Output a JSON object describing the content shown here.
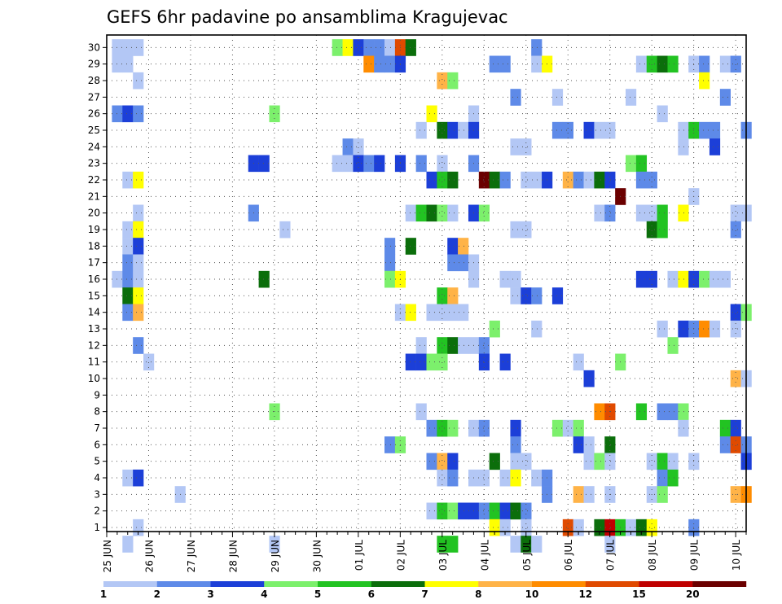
{
  "chart_data": {
    "type": "heatmap",
    "title": "GEFS 6hr padavine po ansamblima Kragujevac",
    "xlabel": "",
    "ylabel": "",
    "x_tick_labels": [
      "25 JUN",
      "26 JUN",
      "27 JUN",
      "28 JUN",
      "29 JUN",
      "30 JUN",
      "01 JUL",
      "02 JUL",
      "03 JUL",
      "04 JUL",
      "05 JUL",
      "06 JUL",
      "07 JUL",
      "08 JUL",
      "09 JUL",
      "10 JUL"
    ],
    "y_tick_labels": [
      "1",
      "2",
      "3",
      "4",
      "5",
      "6",
      "7",
      "8",
      "9",
      "10",
      "11",
      "12",
      "13",
      "14",
      "15",
      "16",
      "17",
      "18",
      "19",
      "20",
      "21",
      "22",
      "23",
      "24",
      "25",
      "26",
      "27",
      "28",
      "29",
      "30"
    ],
    "x_steps_6h": 61,
    "y_members": 30,
    "grid": true,
    "levels": [
      1,
      2,
      3,
      4,
      5,
      6,
      7,
      8,
      10,
      12,
      15,
      20
    ],
    "level_labels": [
      "1",
      "2",
      "3",
      "4",
      "5",
      "6",
      "7",
      "8",
      "10",
      "12",
      "15",
      "20"
    ],
    "palette": [
      "#b3c7f5",
      "#5e8ae8",
      "#1c3fd8",
      "#7cf06c",
      "#22c322",
      "#0b6e0b",
      "#ffff00",
      "#ffb347",
      "#ff8c00",
      "#e04a00",
      "#c00000",
      "#6b0000"
    ],
    "cells": [
      [
        0,
        30,
        0
      ],
      [
        1,
        30,
        0
      ],
      [
        2,
        30,
        0
      ],
      [
        21,
        30,
        3
      ],
      [
        22,
        30,
        6
      ],
      [
        23,
        30,
        2
      ],
      [
        24,
        30,
        1
      ],
      [
        25,
        30,
        1
      ],
      [
        26,
        30,
        0
      ],
      [
        27,
        30,
        9
      ],
      [
        28,
        30,
        5
      ],
      [
        40,
        30,
        1
      ],
      [
        0,
        29,
        0
      ],
      [
        1,
        29,
        0
      ],
      [
        24,
        29,
        8
      ],
      [
        25,
        29,
        1
      ],
      [
        26,
        29,
        1
      ],
      [
        27,
        29,
        2
      ],
      [
        36,
        29,
        1
      ],
      [
        37,
        29,
        1
      ],
      [
        40,
        29,
        0
      ],
      [
        41,
        29,
        6
      ],
      [
        50,
        29,
        0
      ],
      [
        51,
        29,
        4
      ],
      [
        52,
        29,
        5
      ],
      [
        53,
        29,
        4
      ],
      [
        55,
        29,
        0
      ],
      [
        56,
        29,
        1
      ],
      [
        58,
        29,
        0
      ],
      [
        59,
        29,
        1
      ],
      [
        2,
        28,
        0
      ],
      [
        31,
        28,
        7
      ],
      [
        32,
        28,
        3
      ],
      [
        56,
        28,
        6
      ],
      [
        38,
        27,
        1
      ],
      [
        42,
        27,
        0
      ],
      [
        49,
        27,
        0
      ],
      [
        58,
        27,
        1
      ],
      [
        0,
        26,
        1
      ],
      [
        1,
        26,
        2
      ],
      [
        2,
        26,
        1
      ],
      [
        15,
        26,
        3
      ],
      [
        30,
        26,
        6
      ],
      [
        34,
        26,
        0
      ],
      [
        52,
        26,
        0
      ],
      [
        29,
        25,
        0
      ],
      [
        31,
        25,
        5
      ],
      [
        32,
        25,
        2
      ],
      [
        33,
        25,
        0
      ],
      [
        34,
        25,
        2
      ],
      [
        42,
        25,
        1
      ],
      [
        43,
        25,
        1
      ],
      [
        45,
        25,
        2
      ],
      [
        46,
        25,
        0
      ],
      [
        47,
        25,
        0
      ],
      [
        54,
        25,
        0
      ],
      [
        55,
        25,
        4
      ],
      [
        56,
        25,
        1
      ],
      [
        57,
        25,
        1
      ],
      [
        60,
        25,
        1
      ],
      [
        22,
        24,
        1
      ],
      [
        23,
        24,
        0
      ],
      [
        38,
        24,
        0
      ],
      [
        39,
        24,
        0
      ],
      [
        54,
        24,
        0
      ],
      [
        57,
        24,
        2
      ],
      [
        13,
        23,
        2
      ],
      [
        14,
        23,
        2
      ],
      [
        21,
        23,
        0
      ],
      [
        22,
        23,
        0
      ],
      [
        23,
        23,
        2
      ],
      [
        24,
        23,
        1
      ],
      [
        25,
        23,
        2
      ],
      [
        27,
        23,
        2
      ],
      [
        29,
        23,
        1
      ],
      [
        31,
        23,
        0
      ],
      [
        34,
        23,
        1
      ],
      [
        49,
        23,
        3
      ],
      [
        50,
        23,
        4
      ],
      [
        1,
        22,
        0
      ],
      [
        2,
        22,
        6
      ],
      [
        30,
        22,
        2
      ],
      [
        31,
        22,
        4
      ],
      [
        32,
        22,
        5
      ],
      [
        35,
        22,
        11
      ],
      [
        36,
        22,
        5
      ],
      [
        37,
        22,
        1
      ],
      [
        39,
        22,
        0
      ],
      [
        40,
        22,
        0
      ],
      [
        41,
        22,
        2
      ],
      [
        43,
        22,
        7
      ],
      [
        44,
        22,
        1
      ],
      [
        45,
        22,
        0
      ],
      [
        46,
        22,
        5
      ],
      [
        47,
        22,
        2
      ],
      [
        50,
        22,
        1
      ],
      [
        51,
        22,
        1
      ],
      [
        48,
        21,
        11
      ],
      [
        55,
        21,
        0
      ],
      [
        2,
        20,
        0
      ],
      [
        13,
        20,
        1
      ],
      [
        28,
        20,
        0
      ],
      [
        29,
        20,
        4
      ],
      [
        30,
        20,
        5
      ],
      [
        31,
        20,
        3
      ],
      [
        32,
        20,
        0
      ],
      [
        34,
        20,
        2
      ],
      [
        35,
        20,
        3
      ],
      [
        46,
        20,
        0
      ],
      [
        47,
        20,
        1
      ],
      [
        50,
        20,
        0
      ],
      [
        51,
        20,
        0
      ],
      [
        52,
        20,
        4
      ],
      [
        54,
        20,
        6
      ],
      [
        59,
        20,
        0
      ],
      [
        60,
        20,
        0
      ],
      [
        1,
        19,
        0
      ],
      [
        2,
        19,
        6
      ],
      [
        16,
        19,
        0
      ],
      [
        38,
        19,
        0
      ],
      [
        39,
        19,
        0
      ],
      [
        51,
        19,
        5
      ],
      [
        52,
        19,
        4
      ],
      [
        59,
        19,
        1
      ],
      [
        1,
        18,
        0
      ],
      [
        2,
        18,
        2
      ],
      [
        26,
        18,
        1
      ],
      [
        28,
        18,
        5
      ],
      [
        32,
        18,
        2
      ],
      [
        33,
        18,
        7
      ],
      [
        1,
        17,
        1
      ],
      [
        2,
        17,
        0
      ],
      [
        26,
        17,
        1
      ],
      [
        32,
        17,
        1
      ],
      [
        33,
        17,
        1
      ],
      [
        34,
        17,
        0
      ],
      [
        0,
        16,
        0
      ],
      [
        1,
        16,
        1
      ],
      [
        2,
        16,
        0
      ],
      [
        14,
        16,
        5
      ],
      [
        26,
        16,
        3
      ],
      [
        27,
        16,
        6
      ],
      [
        34,
        16,
        0
      ],
      [
        37,
        16,
        0
      ],
      [
        38,
        16,
        0
      ],
      [
        50,
        16,
        2
      ],
      [
        51,
        16,
        2
      ],
      [
        53,
        16,
        0
      ],
      [
        54,
        16,
        6
      ],
      [
        55,
        16,
        2
      ],
      [
        56,
        16,
        3
      ],
      [
        57,
        16,
        0
      ],
      [
        58,
        16,
        0
      ],
      [
        1,
        15,
        5
      ],
      [
        2,
        15,
        6
      ],
      [
        31,
        15,
        4
      ],
      [
        32,
        15,
        7
      ],
      [
        38,
        15,
        0
      ],
      [
        39,
        15,
        2
      ],
      [
        40,
        15,
        1
      ],
      [
        42,
        15,
        2
      ],
      [
        1,
        14,
        1
      ],
      [
        2,
        14,
        7
      ],
      [
        27,
        14,
        0
      ],
      [
        28,
        14,
        6
      ],
      [
        30,
        14,
        0
      ],
      [
        31,
        14,
        0
      ],
      [
        32,
        14,
        0
      ],
      [
        33,
        14,
        0
      ],
      [
        59,
        14,
        2
      ],
      [
        60,
        14,
        3
      ],
      [
        36,
        13,
        3
      ],
      [
        40,
        13,
        0
      ],
      [
        52,
        13,
        0
      ],
      [
        54,
        13,
        2
      ],
      [
        55,
        13,
        1
      ],
      [
        56,
        13,
        8
      ],
      [
        57,
        13,
        0
      ],
      [
        59,
        13,
        0
      ],
      [
        2,
        12,
        1
      ],
      [
        29,
        12,
        0
      ],
      [
        31,
        12,
        4
      ],
      [
        32,
        12,
        5
      ],
      [
        33,
        12,
        0
      ],
      [
        34,
        12,
        0
      ],
      [
        35,
        12,
        1
      ],
      [
        53,
        12,
        3
      ],
      [
        3,
        11,
        0
      ],
      [
        28,
        11,
        2
      ],
      [
        29,
        11,
        2
      ],
      [
        30,
        11,
        3
      ],
      [
        31,
        11,
        3
      ],
      [
        35,
        11,
        2
      ],
      [
        37,
        11,
        2
      ],
      [
        44,
        11,
        0
      ],
      [
        48,
        11,
        3
      ],
      [
        45,
        10,
        2
      ],
      [
        59,
        10,
        7
      ],
      [
        60,
        10,
        0
      ],
      [
        15,
        8,
        3
      ],
      [
        29,
        8,
        0
      ],
      [
        46,
        8,
        8
      ],
      [
        47,
        8,
        9
      ],
      [
        50,
        8,
        4
      ],
      [
        52,
        8,
        1
      ],
      [
        53,
        8,
        1
      ],
      [
        54,
        8,
        3
      ],
      [
        30,
        7,
        1
      ],
      [
        31,
        7,
        4
      ],
      [
        32,
        7,
        3
      ],
      [
        34,
        7,
        0
      ],
      [
        35,
        7,
        1
      ],
      [
        38,
        7,
        2
      ],
      [
        42,
        7,
        3
      ],
      [
        43,
        7,
        0
      ],
      [
        44,
        7,
        3
      ],
      [
        54,
        7,
        0
      ],
      [
        58,
        7,
        4
      ],
      [
        59,
        7,
        2
      ],
      [
        26,
        6,
        1
      ],
      [
        27,
        6,
        3
      ],
      [
        38,
        6,
        1
      ],
      [
        44,
        6,
        2
      ],
      [
        45,
        6,
        0
      ],
      [
        47,
        6,
        5
      ],
      [
        58,
        6,
        1
      ],
      [
        59,
        6,
        9
      ],
      [
        60,
        6,
        1
      ],
      [
        30,
        5,
        1
      ],
      [
        31,
        5,
        7
      ],
      [
        32,
        5,
        2
      ],
      [
        36,
        5,
        5
      ],
      [
        38,
        5,
        0
      ],
      [
        39,
        5,
        0
      ],
      [
        45,
        5,
        0
      ],
      [
        46,
        5,
        3
      ],
      [
        47,
        5,
        0
      ],
      [
        51,
        5,
        0
      ],
      [
        52,
        5,
        4
      ],
      [
        53,
        5,
        0
      ],
      [
        55,
        5,
        0
      ],
      [
        60,
        5,
        2
      ],
      [
        1,
        4,
        0
      ],
      [
        2,
        4,
        2
      ],
      [
        31,
        4,
        0
      ],
      [
        32,
        4,
        1
      ],
      [
        34,
        4,
        0
      ],
      [
        35,
        4,
        0
      ],
      [
        37,
        4,
        0
      ],
      [
        38,
        4,
        6
      ],
      [
        40,
        4,
        0
      ],
      [
        41,
        4,
        1
      ],
      [
        52,
        4,
        1
      ],
      [
        53,
        4,
        4
      ],
      [
        6,
        3,
        0
      ],
      [
        41,
        3,
        1
      ],
      [
        44,
        3,
        7
      ],
      [
        45,
        3,
        0
      ],
      [
        47,
        3,
        0
      ],
      [
        51,
        3,
        0
      ],
      [
        52,
        3,
        3
      ],
      [
        59,
        3,
        7
      ],
      [
        60,
        3,
        8
      ],
      [
        30,
        2,
        0
      ],
      [
        31,
        2,
        4
      ],
      [
        32,
        2,
        3
      ],
      [
        33,
        2,
        2
      ],
      [
        34,
        2,
        2
      ],
      [
        35,
        2,
        1
      ],
      [
        36,
        2,
        4
      ],
      [
        37,
        2,
        2
      ],
      [
        38,
        2,
        5
      ],
      [
        39,
        2,
        1
      ],
      [
        2,
        1,
        0
      ],
      [
        36,
        1,
        6
      ],
      [
        37,
        1,
        0
      ],
      [
        39,
        1,
        0
      ],
      [
        43,
        1,
        9
      ],
      [
        44,
        1,
        0
      ],
      [
        46,
        1,
        5
      ],
      [
        47,
        1,
        10
      ],
      [
        48,
        1,
        4
      ],
      [
        49,
        1,
        0
      ],
      [
        50,
        1,
        5
      ],
      [
        51,
        1,
        6
      ],
      [
        55,
        1,
        1
      ],
      [
        1,
        0,
        0
      ],
      [
        15,
        0,
        0
      ],
      [
        31,
        0,
        4
      ],
      [
        32,
        0,
        4
      ],
      [
        38,
        0,
        0
      ],
      [
        39,
        0,
        5
      ],
      [
        40,
        0,
        0
      ],
      [
        47,
        0,
        0
      ]
    ]
  }
}
